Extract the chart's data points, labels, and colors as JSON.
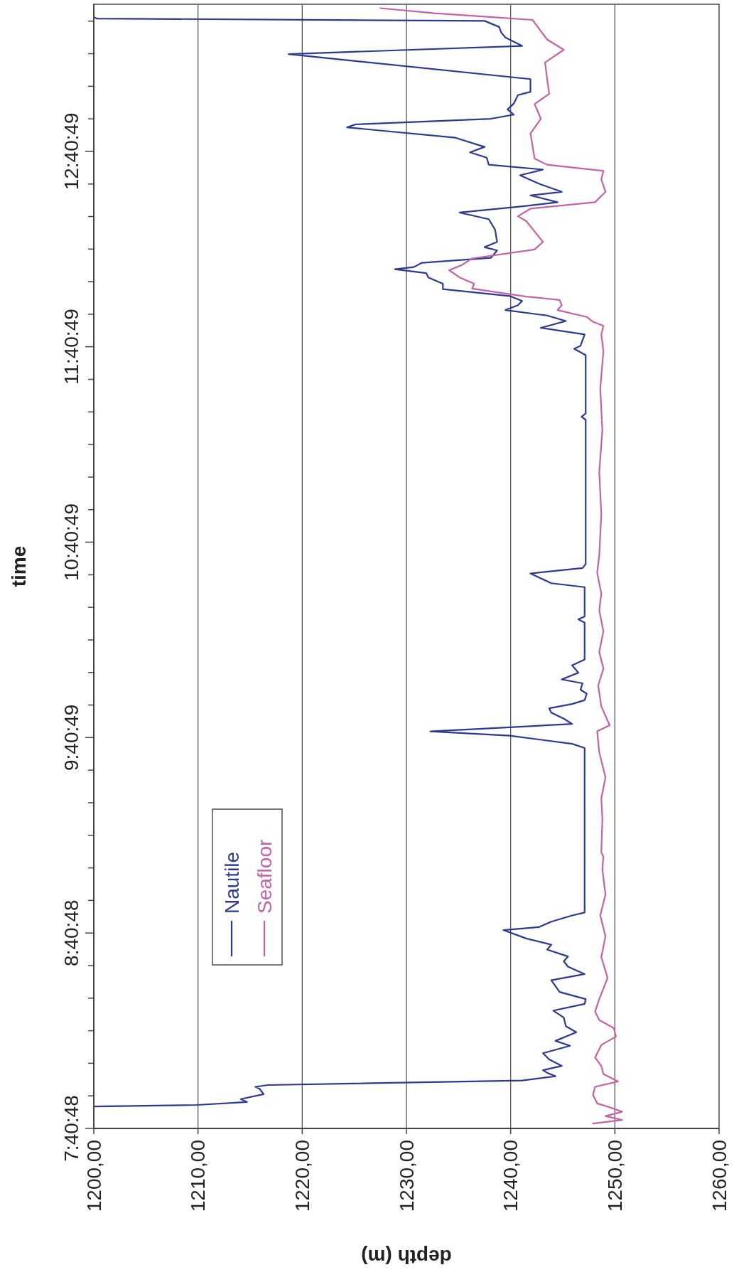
{
  "chart_data": {
    "type": "line",
    "xlabel": "depth (m)",
    "ylabel": "time",
    "xlim": [
      1200,
      1260
    ],
    "ylim": [
      7.68,
      13.433
    ],
    "xticks": [
      {
        "value": 1200,
        "label": "1200,00"
      },
      {
        "value": 1210,
        "label": "1210,00"
      },
      {
        "value": 1220,
        "label": "1220,00"
      },
      {
        "value": 1230,
        "label": "1230,00"
      },
      {
        "value": 1240,
        "label": "1240,00"
      },
      {
        "value": 1250,
        "label": "1250,00"
      },
      {
        "value": 1260,
        "label": "1260,00"
      }
    ],
    "yticks": [
      {
        "value": 7.68,
        "label": "7:40:48"
      },
      {
        "value": 7.8467,
        "label": null
      },
      {
        "value": 8.0133,
        "label": null
      },
      {
        "value": 8.18,
        "label": null
      },
      {
        "value": 8.3467,
        "label": null
      },
      {
        "value": 8.5133,
        "label": null
      },
      {
        "value": 8.68,
        "label": "8:40:48"
      },
      {
        "value": 8.8467,
        "label": null
      },
      {
        "value": 9.0133,
        "label": null
      },
      {
        "value": 9.18,
        "label": null
      },
      {
        "value": 9.3467,
        "label": null
      },
      {
        "value": 9.5133,
        "label": null
      },
      {
        "value": 9.6803,
        "label": "9:40:49"
      },
      {
        "value": 9.8467,
        "label": null
      },
      {
        "value": 10.0133,
        "label": null
      },
      {
        "value": 10.18,
        "label": null
      },
      {
        "value": 10.3467,
        "label": null
      },
      {
        "value": 10.5133,
        "label": null
      },
      {
        "value": 10.6803,
        "label": "10:40:49"
      },
      {
        "value": 10.8467,
        "label": null
      },
      {
        "value": 11.0133,
        "label": null
      },
      {
        "value": 11.18,
        "label": null
      },
      {
        "value": 11.3467,
        "label": null
      },
      {
        "value": 11.5133,
        "label": null
      },
      {
        "value": 11.6803,
        "label": "11:40:49"
      },
      {
        "value": 11.8467,
        "label": null
      },
      {
        "value": 12.0133,
        "label": null
      },
      {
        "value": 12.18,
        "label": null
      },
      {
        "value": 12.3467,
        "label": null
      },
      {
        "value": 12.5133,
        "label": null
      },
      {
        "value": 12.6803,
        "label": "12:40:49"
      },
      {
        "value": 12.8467,
        "label": null
      },
      {
        "value": 13.0133,
        "label": null
      },
      {
        "value": 13.18,
        "label": null
      },
      {
        "value": 13.3467,
        "label": null
      }
    ],
    "grid": "x",
    "legend": "bottom left",
    "series": [
      {
        "name": "Nautile",
        "color": "#2b3a8f",
        "values": [
          7.792,
          7.8,
          7.815,
          7.83,
          7.855,
          7.883,
          7.893,
          7.902,
          7.925,
          7.947,
          7.965,
          7.978,
          8.0,
          8.033,
          8.065,
          8.103,
          8.128,
          8.172,
          8.203,
          8.247,
          8.283,
          8.317,
          8.342,
          8.378,
          8.438,
          8.47,
          8.508,
          8.535,
          8.56,
          8.595,
          8.62,
          8.652,
          8.695,
          8.71,
          8.738,
          8.77,
          8.785,
          9.627,
          9.648,
          9.69,
          9.712,
          9.733,
          9.75,
          9.777,
          9.808,
          9.83,
          9.852,
          9.872,
          9.905,
          9.925,
          9.958,
          9.978,
          10.012,
          10.05,
          10.08,
          10.268,
          10.285,
          10.3,
          10.45,
          10.47,
          10.52,
          10.548,
          10.568,
          11.307,
          11.322,
          11.338,
          11.637,
          11.67,
          11.685,
          11.743,
          11.777,
          11.812,
          11.84,
          11.868,
          11.893,
          11.915,
          11.94,
          11.975,
          12.003,
          12.035,
          12.057,
          12.077,
          12.088,
          12.11,
          12.135,
          12.173,
          12.19,
          12.217,
          12.28,
          12.333,
          12.367,
          12.398,
          12.42,
          12.455,
          12.473,
          12.515,
          12.558,
          12.587,
          12.612,
          12.648,
          12.675,
          12.703,
          12.75,
          12.803,
          12.818,
          12.847,
          12.868,
          12.895,
          12.925,
          12.968,
          12.985,
          13.05,
          13.178,
          13.22,
          13.263,
          13.288,
          13.317,
          13.348,
          13.36,
          13.367
        ],
        "x": [
          1200.1,
          1209.9,
          1214.7,
          1214.1,
          1216.3,
          1215.9,
          1215.5,
          1216.7,
          1241.1,
          1244.3,
          1243.5,
          1243.1,
          1244.9,
          1243.7,
          1243.1,
          1245.7,
          1244.3,
          1246.3,
          1245.3,
          1245.1,
          1244.1,
          1247.1,
          1247.2,
          1244.7,
          1243.9,
          1247.1,
          1245.5,
          1245.1,
          1245.5,
          1243.5,
          1243.9,
          1241.5,
          1239.3,
          1242.7,
          1243.9,
          1245.9,
          1247.1,
          1247.1,
          1245.9,
          1239.9,
          1232.3,
          1239.9,
          1245.9,
          1245.1,
          1243.9,
          1243.7,
          1245.9,
          1247.1,
          1247.3,
          1246.7,
          1246.9,
          1244.9,
          1246.5,
          1245.9,
          1247.1,
          1247.1,
          1246.5,
          1247.1,
          1247.1,
          1243.9,
          1241.9,
          1246.9,
          1247.2,
          1247.2,
          1246.8,
          1247.2,
          1247.2,
          1246.1,
          1246.7,
          1247.1,
          1242.9,
          1245.3,
          1243.5,
          1239.5,
          1240.7,
          1241.1,
          1239.9,
          1233.5,
          1233.5,
          1232.1,
          1231.9,
          1228.9,
          1230.7,
          1231.5,
          1238.1,
          1238.7,
          1237.5,
          1238.7,
          1238.5,
          1237.9,
          1235.1,
          1241.0,
          1244.5,
          1241.9,
          1244.9,
          1242.7,
          1240.9,
          1243.1,
          1237.9,
          1237.7,
          1236.1,
          1237.5,
          1234.7,
          1224.3,
          1225.1,
          1238.1,
          1240.3,
          1239.7,
          1240.3,
          1240.7,
          1241.9,
          1241.9,
          1218.7,
          1241.1,
          1239.5,
          1239.1,
          1238.9,
          1237.5,
          1200.3,
          1200.0
        ]
      },
      {
        "name": "Seafloor",
        "color": "#c462a8",
        "values": [
          7.705,
          7.723,
          7.743,
          7.765,
          7.792,
          7.808,
          7.852,
          7.893,
          7.92,
          7.958,
          8.0,
          8.043,
          8.107,
          8.15,
          8.193,
          8.235,
          8.278,
          8.342,
          8.45,
          8.557,
          8.663,
          8.77,
          8.877,
          9.005,
          9.072,
          9.092,
          9.263,
          9.37,
          9.477,
          9.605,
          9.712,
          9.743,
          9.84,
          9.947,
          10.033,
          10.118,
          10.225,
          10.332,
          10.417,
          10.523,
          10.612,
          10.825,
          11.038,
          11.253,
          11.467,
          11.658,
          11.743,
          11.787,
          11.808,
          11.833,
          11.868,
          11.893,
          11.92,
          11.937,
          11.978,
          12.003,
          12.035,
          12.072,
          12.098,
          12.132,
          12.178,
          12.217,
          12.27,
          12.323,
          12.348,
          12.387,
          12.42,
          12.473,
          12.537,
          12.58,
          12.612,
          12.643,
          12.708,
          12.772,
          12.847,
          12.922,
          12.975,
          13.05,
          13.135,
          13.2,
          13.253,
          13.295,
          13.353,
          13.37,
          13.387,
          13.413
        ],
        "x": [
          1247.9,
          1250.7,
          1249.1,
          1250.7,
          1249.3,
          1248.3,
          1247.9,
          1248.1,
          1250.3,
          1248.9,
          1248.7,
          1248.1,
          1248.7,
          1250.1,
          1249.9,
          1248.5,
          1248.1,
          1248.5,
          1249.3,
          1248.7,
          1249.1,
          1248.6,
          1249.1,
          1248.8,
          1248.9,
          1248.7,
          1248.8,
          1248.7,
          1249.1,
          1248.5,
          1248.3,
          1249.5,
          1248.7,
          1248.4,
          1248.9,
          1248.5,
          1248.9,
          1248.5,
          1248.7,
          1248.3,
          1248.5,
          1248.7,
          1248.5,
          1248.8,
          1248.6,
          1248.9,
          1248.7,
          1248.9,
          1247.9,
          1247.3,
          1244.5,
          1244.9,
          1244.7,
          1241.5,
          1236.3,
          1236.5,
          1235.1,
          1234.1,
          1235.3,
          1236.3,
          1242.3,
          1243.1,
          1242.3,
          1241.5,
          1240.7,
          1241.9,
          1248.1,
          1249.1,
          1248.7,
          1248.9,
          1243.5,
          1242.3,
          1242.1,
          1241.9,
          1242.9,
          1242.3,
          1243.7,
          1243.5,
          1243.3,
          1245.1,
          1243.5,
          1242.9,
          1242.1,
          1237.5,
          1232.7,
          1227.5
        ]
      }
    ]
  }
}
